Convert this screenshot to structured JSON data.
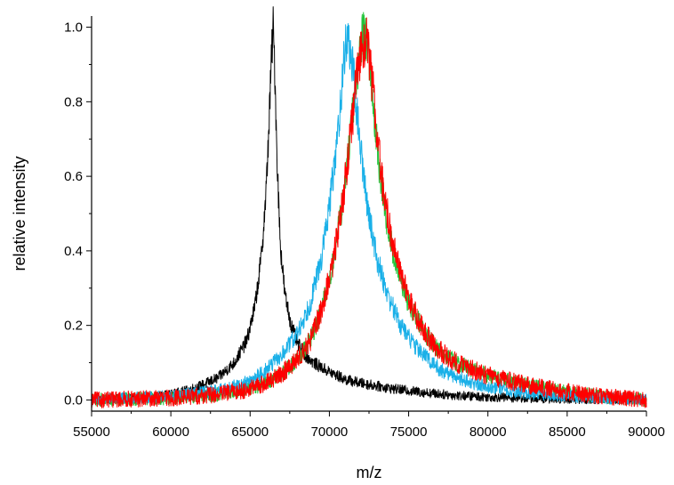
{
  "chart_data": {
    "type": "line",
    "xlabel": "m/z",
    "ylabel": "relative intensity",
    "xlim": [
      55000,
      90000
    ],
    "ylim": [
      -0.03,
      1.03
    ],
    "x_ticks": [
      55000,
      60000,
      65000,
      70000,
      75000,
      80000,
      85000,
      90000
    ],
    "y_ticks": [
      0.0,
      0.2,
      0.4,
      0.6,
      0.8,
      1.0
    ],
    "y_tick_labels": [
      "0.0",
      "0.2",
      "0.4",
      "0.6",
      "0.8",
      "1.0"
    ],
    "grid": false,
    "legend": "none",
    "series": [
      {
        "color": "#000000",
        "x": [
          55000,
          58000,
          60000,
          61000,
          62000,
          63000,
          64000,
          64800,
          65300,
          65700,
          66000,
          66200,
          66350,
          66450,
          66550,
          66700,
          66900,
          67200,
          67600,
          68000,
          68500,
          69000,
          70000,
          71000,
          72000,
          74000,
          76000,
          78000,
          80000,
          84000,
          90000
        ],
        "y": [
          0.0,
          0.005,
          0.015,
          0.025,
          0.04,
          0.06,
          0.1,
          0.16,
          0.25,
          0.38,
          0.55,
          0.75,
          0.92,
          1.0,
          0.9,
          0.65,
          0.42,
          0.28,
          0.2,
          0.15,
          0.12,
          0.1,
          0.075,
          0.055,
          0.045,
          0.03,
          0.02,
          0.012,
          0.008,
          0.003,
          0.0
        ]
      },
      {
        "color": "#22c43a",
        "x": [
          55000,
          60000,
          63000,
          65000,
          66000,
          67000,
          68000,
          68800,
          69500,
          70200,
          70800,
          71300,
          71700,
          72000,
          72200,
          72400,
          72700,
          73100,
          73600,
          74200,
          75000,
          76000,
          77000,
          78000,
          80000,
          83000,
          86000,
          90000
        ],
        "y": [
          0.0,
          0.005,
          0.015,
          0.03,
          0.045,
          0.07,
          0.11,
          0.16,
          0.24,
          0.36,
          0.52,
          0.7,
          0.86,
          0.96,
          1.0,
          0.96,
          0.82,
          0.64,
          0.48,
          0.36,
          0.26,
          0.18,
          0.13,
          0.1,
          0.065,
          0.035,
          0.015,
          0.0
        ]
      },
      {
        "color": "#1ab0e8",
        "x": [
          55000,
          60000,
          63000,
          65000,
          66000,
          67000,
          68000,
          68800,
          69500,
          70000,
          70500,
          70800,
          71000,
          71200,
          71500,
          71900,
          72400,
          73000,
          73700,
          74500,
          75500,
          77000,
          79000,
          82000,
          86000,
          90000
        ],
        "y": [
          0.0,
          0.01,
          0.025,
          0.05,
          0.08,
          0.12,
          0.18,
          0.26,
          0.38,
          0.52,
          0.7,
          0.85,
          0.95,
          0.97,
          0.88,
          0.7,
          0.52,
          0.38,
          0.28,
          0.2,
          0.14,
          0.08,
          0.045,
          0.02,
          0.008,
          0.0
        ]
      },
      {
        "color": "#ff0000",
        "x": [
          55000,
          60000,
          63000,
          65000,
          66000,
          67000,
          68000,
          68800,
          69500,
          70200,
          70800,
          71300,
          71700,
          72000,
          72300,
          72600,
          73000,
          73400,
          73900,
          74500,
          75200,
          76000,
          77000,
          78000,
          80000,
          83000,
          86000,
          90000
        ],
        "y": [
          0.0,
          0.005,
          0.015,
          0.03,
          0.045,
          0.07,
          0.11,
          0.16,
          0.24,
          0.36,
          0.52,
          0.7,
          0.85,
          0.94,
          0.97,
          0.9,
          0.72,
          0.56,
          0.44,
          0.34,
          0.25,
          0.18,
          0.13,
          0.1,
          0.065,
          0.035,
          0.015,
          0.0
        ]
      }
    ]
  }
}
